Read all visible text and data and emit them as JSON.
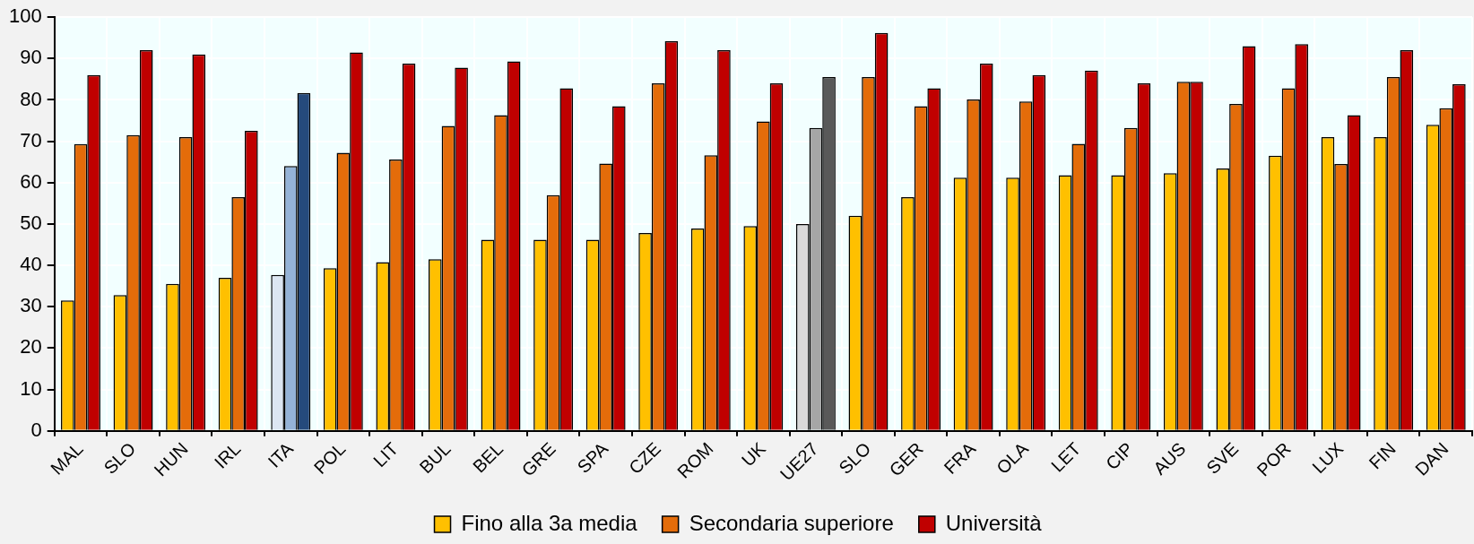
{
  "chart_data": {
    "type": "bar",
    "categories": [
      "MAL",
      "SLO",
      "HUN",
      "IRL",
      "ITA",
      "POL",
      "LIT",
      "BUL",
      "BEL",
      "GRE",
      "SPA",
      "CZE",
      "ROM",
      "UK",
      "UE27",
      "SLO",
      "GER",
      "FRA",
      "OLA",
      "LET",
      "CIP",
      "AUS",
      "SVE",
      "POR",
      "LUX",
      "FIN",
      "DAN"
    ],
    "series": [
      {
        "name": "Fino alla 3a media",
        "color": "#ffc000",
        "colors": [
          "#ffc000",
          "#ffc000",
          "#ffc000",
          "#ffc000",
          "#dce6f2",
          "#ffc000",
          "#ffc000",
          "#ffc000",
          "#ffc000",
          "#ffc000",
          "#ffc000",
          "#ffc000",
          "#ffc000",
          "#ffc000",
          "#d9d9d9",
          "#ffc000",
          "#ffc000",
          "#ffc000",
          "#ffc000",
          "#ffc000",
          "#ffc000",
          "#ffc000",
          "#ffc000",
          "#ffc000",
          "#ffc000",
          "#ffc000",
          "#ffc000"
        ],
        "values": [
          31.5,
          32.8,
          35.5,
          37,
          37.7,
          39.3,
          40.8,
          41.5,
          46.2,
          46.2,
          46.2,
          47.8,
          48.9,
          49.5,
          50,
          52,
          56.5,
          61.2,
          61.2,
          61.8,
          61.8,
          62.3,
          63.4,
          66.5,
          71,
          71,
          74
        ]
      },
      {
        "name": "Secondaria superiore",
        "color": "#e46c0a",
        "colors": [
          "#e46c0a",
          "#e46c0a",
          "#e46c0a",
          "#e46c0a",
          "#95b3d7",
          "#e46c0a",
          "#e46c0a",
          "#e46c0a",
          "#e46c0a",
          "#e46c0a",
          "#e46c0a",
          "#e46c0a",
          "#e46c0a",
          "#e46c0a",
          "#a6a6a6",
          "#e46c0a",
          "#e46c0a",
          "#e46c0a",
          "#e46c0a",
          "#e46c0a",
          "#e46c0a",
          "#e46c0a",
          "#e46c0a",
          "#e46c0a",
          "#e46c0a",
          "#e46c0a",
          "#e46c0a"
        ],
        "values": [
          69.3,
          71.5,
          71,
          56.5,
          64,
          67.2,
          65.6,
          73.7,
          76.3,
          57,
          64.6,
          84,
          66.6,
          74.8,
          73.2,
          85.5,
          78.5,
          80.1,
          79.6,
          69.4,
          73.2,
          84.4,
          79,
          82.8,
          64.5,
          85.5,
          78
        ]
      },
      {
        "name": "Università",
        "color": "#c00000",
        "colors": [
          "#c00000",
          "#c00000",
          "#c00000",
          "#c00000",
          "#254a7c",
          "#c00000",
          "#c00000",
          "#c00000",
          "#c00000",
          "#c00000",
          "#c00000",
          "#c00000",
          "#c00000",
          "#c00000",
          "#595959",
          "#c00000",
          "#c00000",
          "#c00000",
          "#c00000",
          "#c00000",
          "#c00000",
          "#c00000",
          "#c00000",
          "#c00000",
          "#c00000",
          "#c00000",
          "#c00000"
        ],
        "values": [
          86,
          92,
          91,
          72.5,
          81.7,
          91.5,
          88.8,
          87.8,
          89.3,
          82.8,
          78.5,
          94.2,
          92,
          84,
          85.5,
          96.2,
          82.8,
          88.8,
          86,
          87.1,
          84,
          84.4,
          93,
          93.5,
          76.3,
          92,
          83.8
        ]
      }
    ],
    "ylim": [
      0,
      100
    ],
    "yticks": [
      0,
      10,
      20,
      30,
      40,
      50,
      60,
      70,
      80,
      90,
      100
    ],
    "grid": true,
    "legend": "bottom"
  }
}
